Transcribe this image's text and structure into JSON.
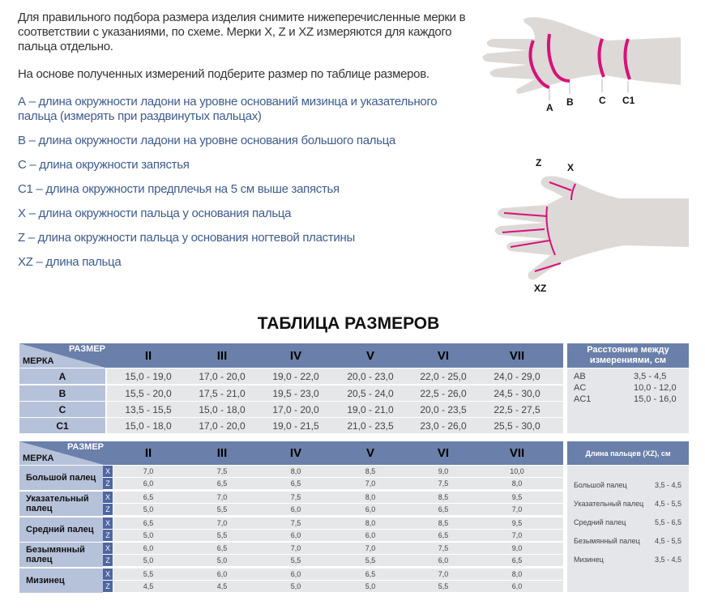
{
  "intro": {
    "p1": "Для правильного подбора размера изделия снимите нижеперечисленные мерки в соответствии с указаниями, по схеме. Мерки X, Z и XZ измеряются для каждого пальца отдельно.",
    "p2": "На основе полученных измерений подберите размер по таблице размеров."
  },
  "definitions": [
    "А – длина окружности ладони на уровне оснований мизинца и указательного пальца (измерять при раздвинутых пальцах)",
    "В – длина окружности ладони на уровне основания большого пальца",
    "С – длина окружности запястья",
    "С1 – длина окружности предплечья на 5 см выше запястья",
    "X – длина окружности пальца у основания пальца",
    "Z – длина окружности пальца у основания ногтевой пластины",
    "XZ – длина пальца"
  ],
  "diagram": {
    "top_labels": [
      "A",
      "B",
      "C",
      "C1"
    ],
    "bottom_labels": [
      "Z",
      "X",
      "XZ"
    ],
    "accent": "#d6127a"
  },
  "title": "ТАБЛИЦА РАЗМЕРОВ",
  "table1": {
    "corner_size": "РАЗМЕР",
    "corner_measure": "МЕРКА",
    "sizes": [
      "II",
      "III",
      "IV",
      "V",
      "VI",
      "VII"
    ],
    "rows": [
      {
        "label": "A",
        "values": [
          "15,0 - 19,0",
          "17,0 - 20,0",
          "19,0 - 22,0",
          "20,0 - 23,0",
          "22,0 - 25,0",
          "24,0 - 29,0"
        ]
      },
      {
        "label": "B",
        "values": [
          "15,5 - 20,0",
          "17,5 - 21,0",
          "19,5 - 23,0",
          "20,5 - 24,0",
          "22,5 - 26,0",
          "24,5 - 30,0"
        ]
      },
      {
        "label": "C",
        "values": [
          "13,5 - 15,5",
          "15,0 - 18,0",
          "17,0 - 20,0",
          "19,0 - 21,0",
          "20,0 - 23,5",
          "22,5 - 27,5"
        ]
      },
      {
        "label": "C1",
        "values": [
          "15,0 - 18,0",
          "17,0 - 20,0",
          "19,0 - 21,5",
          "21,0 - 23,5",
          "23,0 - 26,0",
          "25,5 - 30,0"
        ]
      }
    ],
    "side": {
      "header": "Расстояние между измерениями, см",
      "items": [
        {
          "name": "AB",
          "value": "3,5 - 4,5"
        },
        {
          "name": "AC",
          "value": "10,0 - 12,0"
        },
        {
          "name": "AC1",
          "value": "15,0 - 16,0"
        }
      ]
    }
  },
  "table2": {
    "corner_size": "РАЗМЕР",
    "corner_measure": "МЕРКА",
    "sizes": [
      "II",
      "III",
      "IV",
      "V",
      "VI",
      "VII"
    ],
    "fingers": [
      {
        "label": "Большой палец",
        "X": [
          "7,0",
          "7,5",
          "8,0",
          "8,5",
          "9,0",
          "10,0"
        ],
        "Z": [
          "6,0",
          "6,5",
          "6,5",
          "7,0",
          "7,5",
          "8,0"
        ]
      },
      {
        "label": "Указательный палец",
        "X": [
          "6,5",
          "7,0",
          "7,5",
          "8,0",
          "8,5",
          "9,5"
        ],
        "Z": [
          "5,0",
          "5,5",
          "6,0",
          "6,0",
          "6,5",
          "7,0"
        ]
      },
      {
        "label": "Средний палец",
        "X": [
          "6,5",
          "7,0",
          "7,5",
          "8,0",
          "8,5",
          "9,5"
        ],
        "Z": [
          "5,0",
          "5,5",
          "6,0",
          "6,0",
          "6,5",
          "7,0"
        ]
      },
      {
        "label": "Безымянный палец",
        "X": [
          "6,0",
          "6,5",
          "7,0",
          "7,0",
          "7,5",
          "9,0"
        ],
        "Z": [
          "5,0",
          "5,0",
          "5,5",
          "5,5",
          "6,0",
          "6,5"
        ]
      },
      {
        "label": "Мизинец",
        "X": [
          "5,5",
          "6,0",
          "6,0",
          "6,5",
          "7,0",
          "8,0"
        ],
        "Z": [
          "4,5",
          "4,5",
          "5,0",
          "5,0",
          "5,5",
          "6,0"
        ]
      }
    ],
    "side": {
      "header": "Длина пальцев (XZ), см",
      "items": [
        {
          "name": "Большой палец",
          "value": "3,5 - 4,5"
        },
        {
          "name": "Указательный палец",
          "value": "4,5 - 5,5"
        },
        {
          "name": "Средний палец",
          "value": "5,5 - 6,5"
        },
        {
          "name": "Безымянный палец",
          "value": "4,5 - 5,5"
        },
        {
          "name": "Мизинец",
          "value": "3,5 - 4,5"
        }
      ]
    }
  }
}
